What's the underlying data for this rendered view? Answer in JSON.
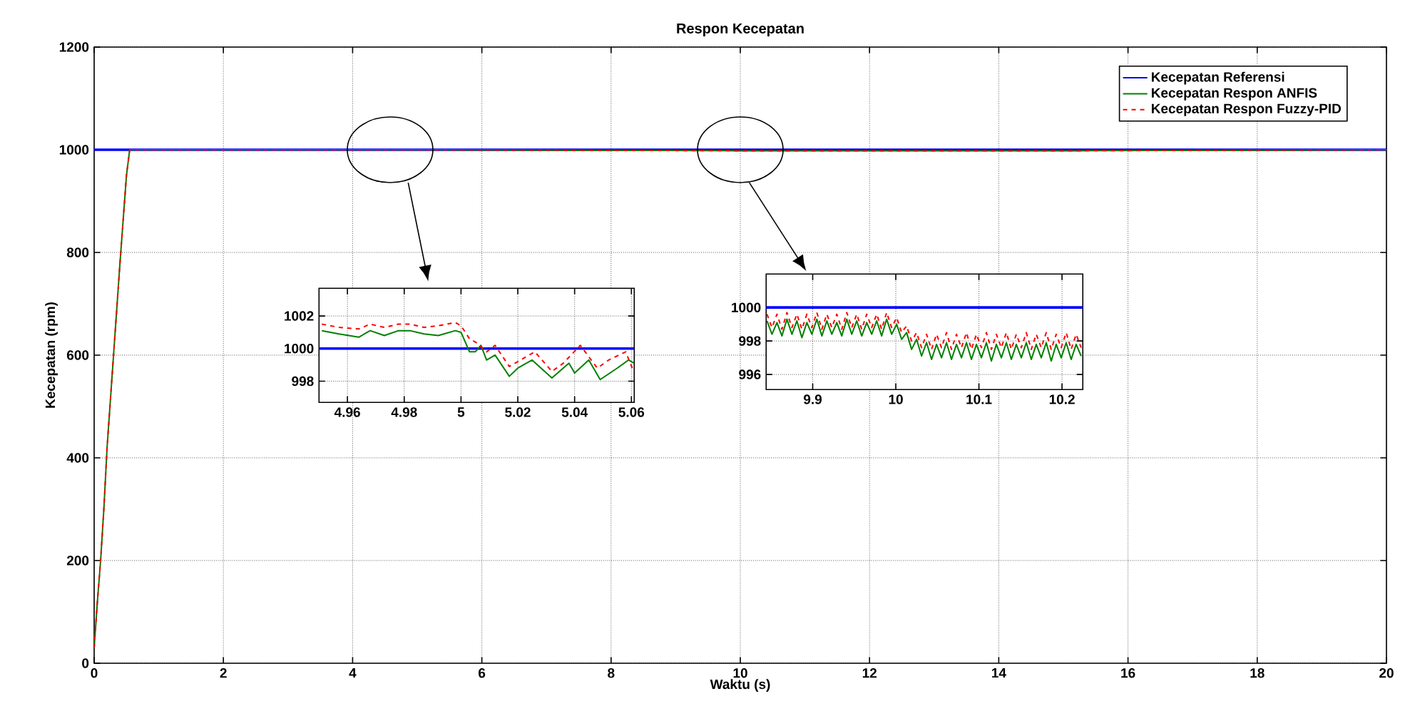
{
  "chart_data": [
    {
      "type": "line",
      "title": "Respon Kecepatan",
      "xlabel": "Waktu (s)",
      "ylabel": "Kecepatan (rpm)",
      "xlim": [
        0,
        20
      ],
      "ylim": [
        0,
        1200
      ],
      "xticks": [
        0,
        2,
        4,
        6,
        8,
        10,
        12,
        14,
        16,
        18,
        20
      ],
      "yticks": [
        0,
        200,
        400,
        600,
        800,
        1000,
        1200
      ],
      "grid": true,
      "legend": "top right",
      "series": [
        {
          "name": "Kecepatan Referensi",
          "color": "#0000ff",
          "line_style": "solid",
          "x": [
            0,
            20
          ],
          "values": [
            1000,
            1000
          ]
        },
        {
          "name": "Kecepatan Respon ANFIS",
          "color": "#008000",
          "line_style": "solid",
          "x": [
            0,
            0.05,
            0.1,
            0.15,
            0.2,
            0.3,
            0.4,
            0.5,
            0.55,
            5,
            10,
            15.2,
            20
          ],
          "values": [
            30,
            120,
            200,
            300,
            420,
            600,
            780,
            950,
            1000,
            1000,
            998,
            998,
            1000
          ]
        },
        {
          "name": "Kecepatan Respon Fuzzy-PID",
          "color": "#ff0000",
          "line_style": "dashed",
          "x": [
            0,
            0.05,
            0.1,
            0.15,
            0.2,
            0.3,
            0.4,
            0.5,
            0.55,
            5,
            10,
            15.2,
            20
          ],
          "values": [
            30,
            120,
            200,
            300,
            420,
            600,
            780,
            950,
            1000,
            1000,
            998,
            998,
            1000
          ]
        }
      ]
    },
    {
      "type": "line",
      "xlim": [
        4.95,
        5.061
      ],
      "ylim": [
        996.7,
        1003.7
      ],
      "xticks": [
        4.96,
        4.98,
        5,
        5.02,
        5.04,
        5.06
      ],
      "yticks": [
        998,
        1000,
        1002
      ],
      "grid": true,
      "series": [
        {
          "color": "#0000ff",
          "line_style": "solid",
          "x": [
            4.95,
            5.061
          ],
          "values": [
            1000,
            1000
          ]
        },
        {
          "color": "#008000",
          "line_style": "solid",
          "x": [
            4.951,
            4.957,
            4.964,
            4.968,
            4.973,
            4.978,
            4.982,
            4.987,
            4.992,
            4.998,
            5.0,
            5.003,
            5.005,
            5.007,
            5.009,
            5.012,
            5.017,
            5.02,
            5.025,
            5.032,
            5.038,
            5.04,
            5.045,
            5.049,
            5.055,
            5.059,
            5.061
          ],
          "values": [
            1001.1,
            1000.9,
            1000.7,
            1001.1,
            1000.8,
            1001.1,
            1001.1,
            1000.9,
            1000.8,
            1001.1,
            1001.0,
            999.8,
            999.8,
            1000.2,
            999.3,
            999.6,
            998.3,
            998.8,
            999.3,
            998.2,
            999.1,
            998.5,
            999.3,
            998.1,
            998.8,
            999.3,
            999.1
          ]
        },
        {
          "color": "#ff0000",
          "line_style": "dashed",
          "x": [
            4.951,
            4.957,
            4.964,
            4.968,
            4.973,
            4.978,
            4.982,
            4.987,
            4.992,
            4.998,
            5.0,
            5.003,
            5.006,
            5.009,
            5.012,
            5.017,
            5.02,
            5.026,
            5.032,
            5.036,
            5.042,
            5.048,
            5.052,
            5.058,
            5.061
          ],
          "values": [
            1001.5,
            1001.3,
            1001.2,
            1001.5,
            1001.3,
            1001.5,
            1001.5,
            1001.3,
            1001.4,
            1001.6,
            1001.4,
            1000.6,
            1000.3,
            999.8,
            1000.2,
            998.9,
            999.2,
            999.8,
            998.6,
            999.1,
            1000.2,
            998.8,
            999.3,
            999.8,
            998.5
          ]
        }
      ]
    },
    {
      "type": "line",
      "xlim": [
        9.844,
        10.225
      ],
      "ylim": [
        995.1,
        1002
      ],
      "xticks": [
        9.9,
        10,
        10.1,
        10.2
      ],
      "yticks": [
        996,
        998,
        1000
      ],
      "grid": true,
      "series": [
        {
          "color": "#0000ff",
          "line_style": "solid",
          "x": [
            9.844,
            10.225
          ],
          "values": [
            1000,
            1000
          ]
        },
        {
          "color": "#008000",
          "line_style": "solid",
          "x": [
            9.845,
            9.851,
            9.857,
            9.863,
            9.869,
            9.875,
            9.881,
            9.887,
            9.893,
            9.899,
            9.905,
            9.911,
            9.917,
            9.923,
            9.929,
            9.935,
            9.941,
            9.947,
            9.953,
            9.959,
            9.965,
            9.971,
            9.977,
            9.983,
            9.989,
            9.995,
            10.001,
            10.007,
            10.013,
            10.019,
            10.025,
            10.031,
            10.037,
            10.043,
            10.049,
            10.055,
            10.061,
            10.067,
            10.073,
            10.079,
            10.085,
            10.091,
            10.097,
            10.103,
            10.109,
            10.115,
            10.121,
            10.127,
            10.133,
            10.139,
            10.145,
            10.151,
            10.157,
            10.163,
            10.169,
            10.175,
            10.181,
            10.187,
            10.193,
            10.199,
            10.205,
            10.211,
            10.217,
            10.223
          ],
          "values": [
            999.2,
            998.4,
            999.1,
            998.3,
            999.3,
            998.4,
            999.2,
            998.2,
            999.1,
            998.4,
            999.3,
            998.3,
            999.2,
            998.4,
            999.1,
            998.3,
            999.3,
            998.4,
            999.2,
            998.3,
            999.1,
            998.4,
            999.2,
            998.3,
            999.3,
            998.4,
            999.0,
            998.1,
            998.5,
            997.5,
            998.1,
            997.1,
            997.9,
            996.9,
            997.8,
            997.0,
            997.9,
            996.9,
            997.8,
            997.0,
            997.9,
            996.9,
            997.8,
            997.0,
            997.9,
            996.8,
            997.8,
            997.0,
            997.9,
            996.9,
            997.8,
            997.0,
            997.9,
            996.9,
            997.8,
            997.0,
            997.9,
            996.8,
            997.8,
            997.0,
            997.9,
            996.9,
            997.8,
            997.1
          ]
        },
        {
          "color": "#ff0000",
          "line_style": "dashed",
          "x": [
            9.845,
            9.851,
            9.857,
            9.863,
            9.869,
            9.875,
            9.881,
            9.887,
            9.893,
            9.899,
            9.905,
            9.911,
            9.917,
            9.923,
            9.929,
            9.935,
            9.941,
            9.947,
            9.953,
            9.959,
            9.965,
            9.971,
            9.977,
            9.983,
            9.989,
            9.995,
            10.001,
            10.007,
            10.013,
            10.019,
            10.025,
            10.031,
            10.037,
            10.043,
            10.049,
            10.055,
            10.061,
            10.067,
            10.073,
            10.079,
            10.085,
            10.091,
            10.097,
            10.103,
            10.109,
            10.115,
            10.121,
            10.127,
            10.133,
            10.139,
            10.145,
            10.151,
            10.157,
            10.163,
            10.169,
            10.175,
            10.181,
            10.187,
            10.193,
            10.199,
            10.205,
            10.211,
            10.217,
            10.223
          ],
          "values": [
            999.6,
            998.8,
            999.6,
            998.7,
            999.7,
            998.8,
            999.6,
            998.7,
            999.6,
            998.8,
            999.7,
            998.7,
            999.6,
            998.8,
            999.6,
            998.7,
            999.7,
            998.8,
            999.6,
            998.7,
            999.6,
            998.8,
            999.6,
            998.7,
            999.7,
            998.8,
            999.4,
            998.5,
            998.9,
            998.0,
            998.5,
            997.6,
            998.4,
            997.5,
            998.4,
            997.6,
            998.5,
            997.5,
            998.4,
            997.6,
            998.5,
            997.5,
            998.4,
            997.6,
            998.5,
            997.5,
            998.4,
            997.6,
            998.5,
            997.5,
            998.4,
            997.6,
            998.5,
            997.5,
            998.4,
            997.6,
            998.5,
            997.5,
            998.4,
            997.6,
            998.5,
            997.5,
            998.4,
            997.6
          ]
        }
      ]
    }
  ]
}
